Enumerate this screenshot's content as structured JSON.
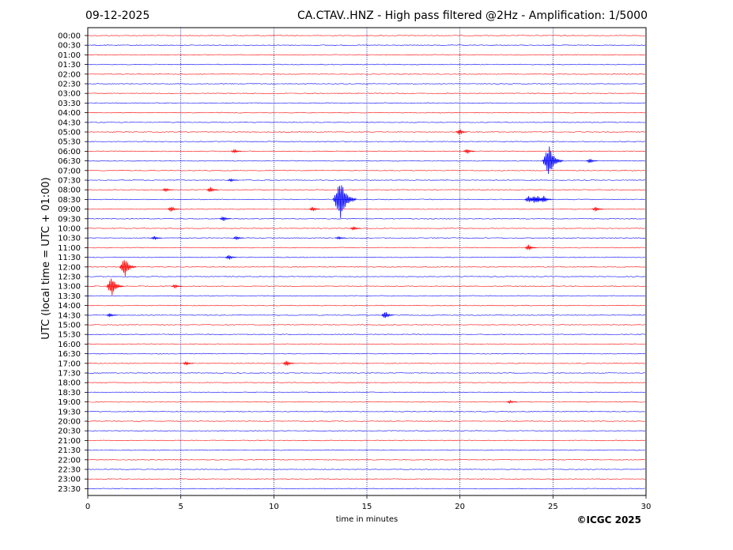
{
  "header": {
    "date": "09-12-2025",
    "title": "CA.CTAV..HNZ - High pass filtered @2Hz - Amplification: 1/5000"
  },
  "credit": "©ICGC 2025",
  "colors": {
    "red_trace": "#ff0000",
    "blue_trace": "#0000ff",
    "grid": "#000080"
  },
  "chart_data": {
    "type": "line",
    "chart_kind": "helicorder seismogram",
    "xlabel": "time in minutes",
    "ylabel": "UTC (local time = UTC + 01:00)",
    "xlim": [
      0,
      30
    ],
    "x_ticks": [
      0,
      5,
      10,
      15,
      20,
      25,
      30
    ],
    "x_tick_labels": [
      "0",
      "5",
      "10",
      "15",
      "20",
      "25",
      "30"
    ],
    "vertical_grid": [
      5,
      10,
      15,
      20,
      25
    ],
    "row_labels": [
      "00:00",
      "00:30",
      "01:00",
      "01:30",
      "02:00",
      "02:30",
      "03:00",
      "03:30",
      "04:00",
      "04:30",
      "05:00",
      "05:30",
      "06:00",
      "06:30",
      "07:00",
      "07:30",
      "08:00",
      "08:30",
      "09:00",
      "09:30",
      "10:00",
      "10:30",
      "11:00",
      "11:30",
      "12:00",
      "12:30",
      "13:00",
      "13:30",
      "14:00",
      "14:30",
      "15:00",
      "15:30",
      "16:00",
      "16:30",
      "17:00",
      "17:30",
      "18:00",
      "18:30",
      "19:00",
      "19:30",
      "20:00",
      "20:30",
      "21:00",
      "21:30",
      "22:00",
      "22:30",
      "23:00",
      "23:30"
    ],
    "row_color_cycle": [
      "red",
      "blue"
    ],
    "events": [
      {
        "row": "05:00",
        "minute": 20.0,
        "amp": 0.3
      },
      {
        "row": "06:00",
        "minute": 20.4,
        "amp": 0.25
      },
      {
        "row": "06:00",
        "minute": 7.9,
        "amp": 0.2
      },
      {
        "row": "06:30",
        "minute": 24.8,
        "amp": 1.6
      },
      {
        "row": "06:30",
        "minute": 27.0,
        "amp": 0.25
      },
      {
        "row": "07:30",
        "minute": 7.7,
        "amp": 0.15
      },
      {
        "row": "08:00",
        "minute": 6.6,
        "amp": 0.3
      },
      {
        "row": "08:00",
        "minute": 4.2,
        "amp": 0.2
      },
      {
        "row": "08:30",
        "minute": 13.6,
        "amp": 2.0
      },
      {
        "row": "08:30",
        "minute": 23.7,
        "amp": 0.35
      },
      {
        "row": "08:30",
        "minute": 24.0,
        "amp": 0.4
      },
      {
        "row": "08:30",
        "minute": 24.2,
        "amp": 0.4
      },
      {
        "row": "08:30",
        "minute": 24.5,
        "amp": 0.4
      },
      {
        "row": "09:00",
        "minute": 4.5,
        "amp": 0.3
      },
      {
        "row": "09:00",
        "minute": 12.1,
        "amp": 0.25
      },
      {
        "row": "09:00",
        "minute": 27.3,
        "amp": 0.25
      },
      {
        "row": "09:30",
        "minute": 7.3,
        "amp": 0.25
      },
      {
        "row": "10:00",
        "minute": 14.3,
        "amp": 0.2
      },
      {
        "row": "10:30",
        "minute": 3.6,
        "amp": 0.2
      },
      {
        "row": "10:30",
        "minute": 8.0,
        "amp": 0.2
      },
      {
        "row": "10:30",
        "minute": 13.5,
        "amp": 0.15
      },
      {
        "row": "11:00",
        "minute": 23.7,
        "amp": 0.3
      },
      {
        "row": "11:30",
        "minute": 7.6,
        "amp": 0.25
      },
      {
        "row": "12:00",
        "minute": 2.0,
        "amp": 1.0
      },
      {
        "row": "13:00",
        "minute": 1.3,
        "amp": 1.0
      },
      {
        "row": "13:00",
        "minute": 4.7,
        "amp": 0.2
      },
      {
        "row": "14:30",
        "minute": 1.2,
        "amp": 0.2
      },
      {
        "row": "14:30",
        "minute": 16.0,
        "amp": 0.4
      },
      {
        "row": "17:00",
        "minute": 5.3,
        "amp": 0.2
      },
      {
        "row": "17:00",
        "minute": 10.7,
        "amp": 0.3
      },
      {
        "row": "19:00",
        "minute": 22.7,
        "amp": 0.15
      }
    ]
  }
}
